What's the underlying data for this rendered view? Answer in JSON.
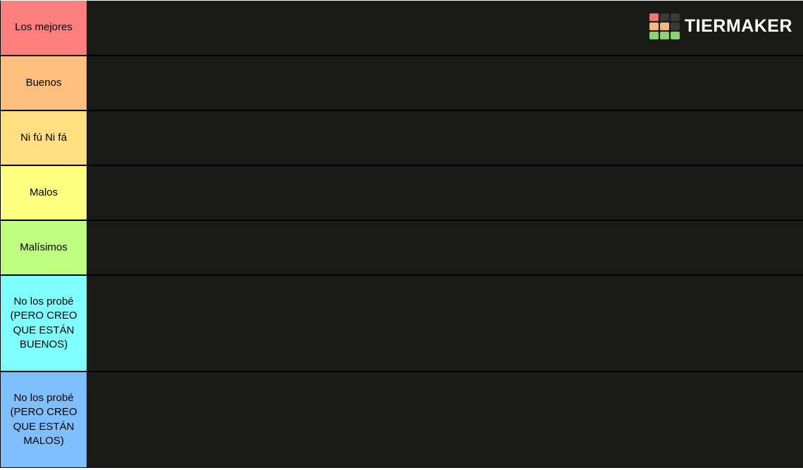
{
  "watermark": {
    "text": "TIERMAKER",
    "grid_colors": [
      "#ed7374",
      "#393939",
      "#393939",
      "#f2b983",
      "#f2b983",
      "#393939",
      "#88d46d",
      "#88d46d",
      "#88d46d"
    ]
  },
  "tiers": [
    {
      "label": "Los mejores",
      "color": "#ff7f7f",
      "min_height": 78
    },
    {
      "label": "Buenos",
      "color": "#ffbf7f",
      "min_height": 78
    },
    {
      "label": "Ni fú Ni fá",
      "color": "#ffdf7f",
      "min_height": 78
    },
    {
      "label": "Malos",
      "color": "#ffff7f",
      "min_height": 78
    },
    {
      "label": "Malísimos",
      "color": "#bfff7f",
      "min_height": 78
    },
    {
      "label": "No los probé (PERO CREO QUE ESTÁN BUENOS)",
      "color": "#7fffff",
      "min_height": 137
    },
    {
      "label": "No los probé (PERO CREO QUE ESTÁN MALOS)",
      "color": "#7fbfff",
      "min_height": 137
    }
  ]
}
